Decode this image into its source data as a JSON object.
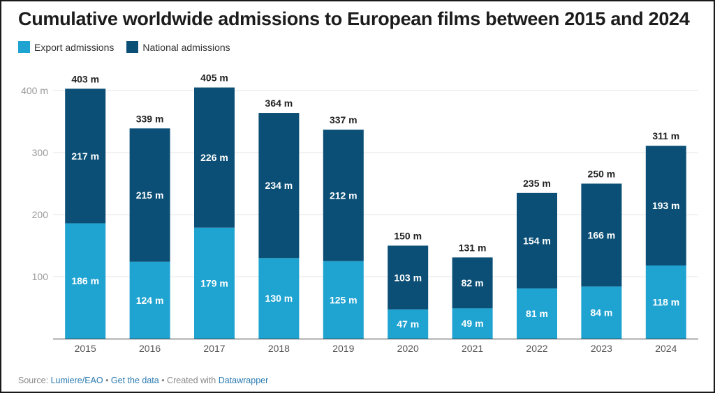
{
  "chart_data": {
    "type": "bar",
    "stacked": true,
    "title": "Cumulative worldwide admissions to European films between 2015 and 2024",
    "categories": [
      "2015",
      "2016",
      "2017",
      "2018",
      "2019",
      "2020",
      "2021",
      "2022",
      "2023",
      "2024"
    ],
    "series": [
      {
        "name": "Export admissions",
        "color": "#1fa3d1",
        "values": [
          186,
          124,
          179,
          130,
          125,
          47,
          49,
          81,
          84,
          118
        ]
      },
      {
        "name": "National admissions",
        "color": "#0b4f76",
        "values": [
          217,
          215,
          226,
          234,
          212,
          103,
          82,
          154,
          166,
          193
        ]
      }
    ],
    "totals": [
      403,
      339,
      405,
      364,
      337,
      150,
      131,
      235,
      250,
      311
    ],
    "unit_suffix": " m",
    "y_ticks": [
      100,
      200,
      300,
      400
    ],
    "y_tick_labels": [
      "100",
      "200",
      "300",
      "400 m"
    ],
    "ylim": [
      0,
      420
    ],
    "grid": true,
    "legend_position": "top-left"
  },
  "footer": {
    "prefix": "Source: ",
    "source": "Lumiere/EAO",
    "sep1": " • ",
    "get_data": "Get the data",
    "sep2": " • Created with ",
    "tool": "Datawrapper"
  }
}
